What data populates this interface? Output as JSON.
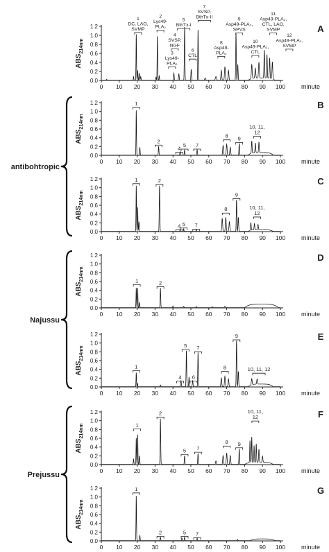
{
  "groups": [
    {
      "label": "antibohtropic",
      "panels": [
        "B",
        "C"
      ]
    },
    {
      "label": "Najussu",
      "panels": [
        "D",
        "E"
      ]
    },
    {
      "label": "Prejussu",
      "panels": [
        "F",
        "G"
      ]
    }
  ],
  "chart_data": [
    {
      "type": "line",
      "panel": "A",
      "ylabel": "ABS",
      "ylabel_sub": "214nm",
      "xlabel": "minute",
      "xlim": [
        0,
        100
      ],
      "ylim": [
        0,
        1.2
      ],
      "x_ticks": [
        "0",
        "10",
        "20",
        "30",
        "40",
        "50",
        "60",
        "70",
        "80",
        "90",
        "100"
      ],
      "y_ticks": [
        "0.0",
        "0.2",
        "0.4",
        "0.6",
        "0.8",
        "1.0",
        "1.2"
      ],
      "peaks": [
        {
          "x": 3,
          "y": 0.02,
          "w": 0.3
        },
        {
          "x": 18,
          "y": 0.08,
          "w": 0.3
        },
        {
          "x": 19.5,
          "y": 1.02,
          "w": 0.3
        },
        {
          "x": 20.3,
          "y": 0.22,
          "w": 0.35
        },
        {
          "x": 21.2,
          "y": 0.15,
          "w": 0.35
        },
        {
          "x": 22,
          "y": 0.08,
          "w": 0.4
        },
        {
          "x": 30.5,
          "y": 0.07,
          "w": 0.4
        },
        {
          "x": 31.3,
          "y": 0.98,
          "w": 0.3
        },
        {
          "x": 32.3,
          "y": 0.1,
          "w": 0.3
        },
        {
          "x": 40.5,
          "y": 0.16,
          "w": 0.4
        },
        {
          "x": 43.3,
          "y": 0.14,
          "w": 0.4
        },
        {
          "x": 46.5,
          "y": 1.18,
          "w": 0.35
        },
        {
          "x": 50.2,
          "y": 0.24,
          "w": 0.4
        },
        {
          "x": 54,
          "y": 1.12,
          "w": 0.3
        },
        {
          "x": 58,
          "y": 0.05,
          "w": 0.6
        },
        {
          "x": 64,
          "y": 0.08,
          "w": 0.7
        },
        {
          "x": 67,
          "y": 0.22,
          "w": 0.5
        },
        {
          "x": 69,
          "y": 0.3,
          "w": 0.5
        },
        {
          "x": 71,
          "y": 0.22,
          "w": 0.5
        },
        {
          "x": 75.2,
          "y": 1.05,
          "w": 0.35
        },
        {
          "x": 76.2,
          "y": 0.35,
          "w": 0.4
        },
        {
          "x": 84,
          "y": 0.32,
          "w": 0.5
        },
        {
          "x": 86,
          "y": 0.22,
          "w": 0.5
        },
        {
          "x": 88,
          "y": 0.35,
          "w": 0.5
        },
        {
          "x": 91,
          "y": 0.62,
          "w": 0.4
        },
        {
          "x": 92.5,
          "y": 0.52,
          "w": 0.4
        },
        {
          "x": 94,
          "y": 0.45,
          "w": 0.4
        },
        {
          "x": 95.5,
          "y": 0.38,
          "w": 0.45
        }
      ],
      "baseline_bump": {
        "from": 82,
        "to": 97,
        "y": 0.05
      },
      "annotations": [
        {
          "lines": [
            "1",
            "DC, LAO,",
            "SVMP"
          ],
          "x": 20.5,
          "y": 1.11
        },
        {
          "lines": [
            "2",
            "Lys49-",
            "PLA₂"
          ],
          "x": 33,
          "y": 1.16
        },
        {
          "lines": [
            "4",
            "SVSP,",
            "NGF"
          ],
          "x": 41,
          "y": 0.75
        },
        {
          "lines": [
            "3",
            "Lys49-",
            "PLA₂"
          ],
          "x": 39.5,
          "y": 0.35
        },
        {
          "lines": [
            "5",
            "BthTx-I"
          ],
          "x": 46,
          "y": 1.2
        },
        {
          "lines": [
            "6",
            "CTL"
          ],
          "x": 51,
          "y": 0.52
        },
        {
          "lines": [
            "7",
            "SVSP,",
            "BthTx-II"
          ],
          "x": 57.5,
          "y": 1.38
        },
        {
          "lines": [
            "8",
            "Asp49-",
            "PLA₂"
          ],
          "x": 67,
          "y": 0.58
        },
        {
          "lines": [
            "9",
            "Asp49-PLA₂,",
            "SPVS"
          ],
          "x": 77,
          "y": 1.1
        },
        {
          "lines": [
            "10",
            "Asp49-PLA₂,",
            "CTL"
          ],
          "x": 86,
          "y": 0.6
        },
        {
          "lines": [
            "11",
            "Asp49-PLA₂,",
            "CTL, LAO,",
            "SVMP"
          ],
          "x": 96,
          "y": 1.1
        },
        {
          "lines": [
            "12",
            "Asp49-PLA₂,",
            "SVMP"
          ],
          "x": 105,
          "y": 0.74
        }
      ]
    },
    {
      "type": "line",
      "panel": "B",
      "ylabel": "ABS",
      "ylabel_sub": "214nm",
      "xlabel": "minute",
      "xlim": [
        0,
        100
      ],
      "ylim": [
        0,
        1.2
      ],
      "x_ticks": [
        "0",
        "10",
        "20",
        "30",
        "40",
        "50",
        "60",
        "70",
        "80",
        "90",
        "100"
      ],
      "y_ticks": [
        "0.0",
        "0.2",
        "0.4",
        "0.6",
        "0.8",
        "1.0",
        "1.2"
      ],
      "peaks": [
        {
          "x": 19.5,
          "y": 1.02,
          "w": 0.3
        },
        {
          "x": 21.5,
          "y": 0.18,
          "w": 0.35
        },
        {
          "x": 32,
          "y": 0.2,
          "w": 0.35
        },
        {
          "x": 44,
          "y": 0.08,
          "w": 0.35
        },
        {
          "x": 46.5,
          "y": 0.12,
          "w": 0.35
        },
        {
          "x": 53.5,
          "y": 0.13,
          "w": 0.35
        },
        {
          "x": 68,
          "y": 0.22,
          "w": 0.5
        },
        {
          "x": 70,
          "y": 0.25,
          "w": 0.5
        },
        {
          "x": 72,
          "y": 0.18,
          "w": 0.5
        },
        {
          "x": 77,
          "y": 0.27,
          "w": 0.35
        },
        {
          "x": 84,
          "y": 0.28,
          "w": 0.4
        },
        {
          "x": 86,
          "y": 0.22,
          "w": 0.4
        },
        {
          "x": 88,
          "y": 0.24,
          "w": 0.4
        }
      ],
      "baseline_bump": {
        "from": 82,
        "to": 96,
        "y": 0.06
      },
      "annotations": [
        {
          "lines": [
            "1"
          ],
          "x": 19.5,
          "y": 1.14
        },
        {
          "lines": [
            "2"
          ],
          "x": 32,
          "y": 0.28
        },
        {
          "lines": [
            "4"
          ],
          "x": 43.5,
          "y": 0.12
        },
        {
          "lines": [
            "5"
          ],
          "x": 46.5,
          "y": 0.19
        },
        {
          "lines": [
            "7"
          ],
          "x": 53.5,
          "y": 0.19
        },
        {
          "lines": [
            "8"
          ],
          "x": 70,
          "y": 0.4
        },
        {
          "lines": [
            "9"
          ],
          "x": 77,
          "y": 0.34
        },
        {
          "lines": [
            "10, 11,",
            "12"
          ],
          "x": 87,
          "y": 0.48
        }
      ]
    },
    {
      "type": "line",
      "panel": "C",
      "ylabel": "ABS",
      "ylabel_sub": "214nm",
      "xlabel": "minute",
      "xlim": [
        0,
        100
      ],
      "ylim": [
        0,
        1.2
      ],
      "x_ticks": [
        "0",
        "10",
        "20",
        "30",
        "40",
        "50",
        "60",
        "70",
        "80",
        "90",
        "100"
      ],
      "y_ticks": [
        "0.0",
        "0.2",
        "0.4",
        "0.6",
        "0.8",
        "1.0",
        "1.2"
      ],
      "peaks": [
        {
          "x": 19.5,
          "y": 1.04,
          "w": 0.3
        },
        {
          "x": 20.3,
          "y": 0.55,
          "w": 0.3
        },
        {
          "x": 21,
          "y": 0.22,
          "w": 0.35
        },
        {
          "x": 32.5,
          "y": 1.04,
          "w": 0.35
        },
        {
          "x": 44,
          "y": 0.05,
          "w": 0.3
        },
        {
          "x": 46,
          "y": 0.06,
          "w": 0.3
        },
        {
          "x": 53,
          "y": 0.05,
          "w": 0.3
        },
        {
          "x": 67.5,
          "y": 0.3,
          "w": 0.5
        },
        {
          "x": 69.5,
          "y": 0.32,
          "w": 0.5
        },
        {
          "x": 71.5,
          "y": 0.22,
          "w": 0.5
        },
        {
          "x": 75.5,
          "y": 0.72,
          "w": 0.35
        },
        {
          "x": 76.5,
          "y": 0.32,
          "w": 0.4
        },
        {
          "x": 83.5,
          "y": 0.18,
          "w": 0.4
        },
        {
          "x": 85.5,
          "y": 0.14,
          "w": 0.4
        },
        {
          "x": 87.5,
          "y": 0.12,
          "w": 0.4
        }
      ],
      "baseline_bump": {
        "from": 82,
        "to": 96,
        "y": 0.04
      },
      "annotations": [
        {
          "lines": [
            "1"
          ],
          "x": 19.5,
          "y": 1.14
        },
        {
          "lines": [
            "2"
          ],
          "x": 32.5,
          "y": 1.12
        },
        {
          "lines": [
            "4"
          ],
          "x": 43.5,
          "y": 0.09
        },
        {
          "lines": [
            "5"
          ],
          "x": 46,
          "y": 0.13
        },
        {
          "lines": [
            "7"
          ],
          "x": 53,
          "y": 0.1
        },
        {
          "lines": [
            "8"
          ],
          "x": 69.5,
          "y": 0.47
        },
        {
          "lines": [
            "9"
          ],
          "x": 75.5,
          "y": 0.8
        },
        {
          "lines": [
            "10, 11,",
            "12"
          ],
          "x": 87,
          "y": 0.38
        }
      ]
    },
    {
      "type": "line",
      "panel": "D",
      "ylabel": "ABS",
      "ylabel_sub": "214nm",
      "xlabel": "minute",
      "xlim": [
        0,
        100
      ],
      "ylim": [
        0,
        1.2
      ],
      "x_ticks": [
        "0",
        "10",
        "20",
        "30",
        "40",
        "50",
        "60",
        "70",
        "80",
        "90",
        "100"
      ],
      "y_ticks": [
        "0.0",
        "0.2",
        "0.4",
        "0.6",
        "0.8",
        "1.0",
        "1.2"
      ],
      "peaks": [
        {
          "x": 19.5,
          "y": 0.45,
          "w": 0.3
        },
        {
          "x": 20.3,
          "y": 0.45,
          "w": 0.3
        },
        {
          "x": 21.3,
          "y": 0.12,
          "w": 0.35
        },
        {
          "x": 33,
          "y": 0.45,
          "w": 0.35
        },
        {
          "x": 40,
          "y": 0.04,
          "w": 0.35
        },
        {
          "x": 46,
          "y": 0.03,
          "w": 0.35
        },
        {
          "x": 53,
          "y": 0.03,
          "w": 0.35
        },
        {
          "x": 62,
          "y": 0.02,
          "w": 0.5
        },
        {
          "x": 69,
          "y": 0.03,
          "w": 0.5
        }
      ],
      "baseline_bump": {
        "from": 80,
        "to": 99,
        "y": 0.08
      },
      "annotations": [
        {
          "lines": [
            "1"
          ],
          "x": 19.8,
          "y": 0.58
        },
        {
          "lines": [
            "2"
          ],
          "x": 33,
          "y": 0.53
        }
      ]
    },
    {
      "type": "line",
      "panel": "E",
      "ylabel": "ABS",
      "ylabel_sub": "214nm",
      "xlabel": "minute",
      "xlim": [
        0,
        100
      ],
      "ylim": [
        0,
        1.2
      ],
      "x_ticks": [
        "0",
        "10",
        "20",
        "30",
        "40",
        "50",
        "60",
        "70",
        "80",
        "90",
        "100"
      ],
      "y_ticks": [
        "0.0",
        "0.2",
        "0.4",
        "0.6",
        "0.8",
        "1.0",
        "1.2"
      ],
      "peaks": [
        {
          "x": 19.5,
          "y": 0.32,
          "w": 0.3
        },
        {
          "x": 20.2,
          "y": 0.08,
          "w": 0.3
        },
        {
          "x": 33,
          "y": 0.04,
          "w": 0.35
        },
        {
          "x": 44.5,
          "y": 0.14,
          "w": 0.4
        },
        {
          "x": 47.5,
          "y": 0.82,
          "w": 0.35
        },
        {
          "x": 49,
          "y": 0.22,
          "w": 0.4
        },
        {
          "x": 51,
          "y": 0.14,
          "w": 0.4
        },
        {
          "x": 54,
          "y": 0.78,
          "w": 0.35
        },
        {
          "x": 67,
          "y": 0.2,
          "w": 0.5
        },
        {
          "x": 69,
          "y": 0.24,
          "w": 0.5
        },
        {
          "x": 71,
          "y": 0.18,
          "w": 0.5
        },
        {
          "x": 75.5,
          "y": 1.05,
          "w": 0.35
        },
        {
          "x": 76.5,
          "y": 0.35,
          "w": 0.4
        },
        {
          "x": 84,
          "y": 0.14,
          "w": 0.5
        },
        {
          "x": 87,
          "y": 0.12,
          "w": 0.5
        }
      ],
      "baseline_bump": {
        "from": 82,
        "to": 96,
        "y": 0.06
      },
      "annotations": [
        {
          "lines": [
            "1"
          ],
          "x": 19.5,
          "y": 0.42
        },
        {
          "lines": [
            "4"
          ],
          "x": 44,
          "y": 0.18
        },
        {
          "lines": [
            "5"
          ],
          "x": 47,
          "y": 0.9
        },
        {
          "lines": [
            "6"
          ],
          "x": 51.5,
          "y": 0.18
        },
        {
          "lines": [
            "7"
          ],
          "x": 54,
          "y": 0.85
        },
        {
          "lines": [
            "8"
          ],
          "x": 69,
          "y": 0.4
        },
        {
          "lines": [
            "9"
          ],
          "x": 75.5,
          "y": 1.12
        },
        {
          "lines": [
            "10, 11, 12"
          ],
          "x": 88,
          "y": 0.36
        }
      ]
    },
    {
      "type": "line",
      "panel": "F",
      "ylabel": "ABS",
      "ylabel_sub": "214nm",
      "xlabel": "minute",
      "xlim": [
        0,
        100
      ],
      "ylim": [
        0,
        1.2
      ],
      "x_ticks": [
        "0",
        "10",
        "20",
        "30",
        "40",
        "50",
        "60",
        "70",
        "80",
        "90",
        "100"
      ],
      "y_ticks": [
        "0.0",
        "0.2",
        "0.4",
        "0.6",
        "0.8",
        "1.0",
        "1.2"
      ],
      "peaks": [
        {
          "x": 18,
          "y": 0.12,
          "w": 0.35
        },
        {
          "x": 19.5,
          "y": 0.6,
          "w": 0.3
        },
        {
          "x": 20.3,
          "y": 0.68,
          "w": 0.3
        },
        {
          "x": 21.3,
          "y": 0.2,
          "w": 0.35
        },
        {
          "x": 33,
          "y": 1.04,
          "w": 0.35
        },
        {
          "x": 46.5,
          "y": 0.2,
          "w": 0.35
        },
        {
          "x": 54,
          "y": 0.25,
          "w": 0.35
        },
        {
          "x": 64,
          "y": 0.08,
          "w": 0.5
        },
        {
          "x": 68,
          "y": 0.2,
          "w": 0.5
        },
        {
          "x": 70,
          "y": 0.26,
          "w": 0.5
        },
        {
          "x": 72,
          "y": 0.2,
          "w": 0.5
        },
        {
          "x": 77,
          "y": 0.36,
          "w": 0.35
        },
        {
          "x": 83,
          "y": 0.5,
          "w": 0.35
        },
        {
          "x": 84,
          "y": 0.58,
          "w": 0.35
        },
        {
          "x": 85.3,
          "y": 0.38,
          "w": 0.35
        },
        {
          "x": 86.5,
          "y": 0.42,
          "w": 0.35
        },
        {
          "x": 88,
          "y": 0.3,
          "w": 0.4
        },
        {
          "x": 90,
          "y": 0.14,
          "w": 0.45
        }
      ],
      "baseline_bump": {
        "from": 80,
        "to": 96,
        "y": 0.05
      },
      "annotations": [
        {
          "lines": [
            "1"
          ],
          "x": 20,
          "y": 0.86
        },
        {
          "lines": [
            "2"
          ],
          "x": 33,
          "y": 1.13
        },
        {
          "lines": [
            "5"
          ],
          "x": 46.5,
          "y": 0.28
        },
        {
          "lines": [
            "7"
          ],
          "x": 54,
          "y": 0.33
        },
        {
          "lines": [
            "8"
          ],
          "x": 70,
          "y": 0.47
        },
        {
          "lines": [
            "9"
          ],
          "x": 77,
          "y": 0.43
        },
        {
          "lines": [
            "10, 11,",
            "12"
          ],
          "x": 86,
          "y": 1.04
        }
      ]
    },
    {
      "type": "line",
      "panel": "G",
      "ylabel": "ABS",
      "ylabel_sub": "214nm",
      "xlabel": "minute",
      "xlim": [
        0,
        100
      ],
      "ylim": [
        0,
        1.2
      ],
      "x_ticks": [
        "0",
        "10",
        "20",
        "30",
        "40",
        "50",
        "60",
        "70",
        "80",
        "90",
        "100"
      ],
      "y_ticks": [
        "0.0",
        "0.2",
        "0.4",
        "0.6",
        "0.8",
        "1.0",
        "1.2"
      ],
      "peaks": [
        {
          "x": 19.5,
          "y": 1.02,
          "w": 0.3
        },
        {
          "x": 21.5,
          "y": 0.12,
          "w": 0.35
        },
        {
          "x": 33,
          "y": 0.08,
          "w": 0.35
        },
        {
          "x": 45,
          "y": 0.06,
          "w": 0.35
        },
        {
          "x": 46.5,
          "y": 0.08,
          "w": 0.35
        },
        {
          "x": 53.5,
          "y": 0.06,
          "w": 0.35
        },
        {
          "x": 76,
          "y": 0.03,
          "w": 0.4
        }
      ],
      "baseline_bump": {
        "from": 83,
        "to": 97,
        "y": 0.04
      },
      "annotations": [
        {
          "lines": [
            "1"
          ],
          "x": 19.5,
          "y": 1.14
        },
        {
          "lines": [
            "2"
          ],
          "x": 33,
          "y": 0.15
        },
        {
          "lines": [
            "5"
          ],
          "x": 46.5,
          "y": 0.15
        },
        {
          "lines": [
            "7"
          ],
          "x": 53.5,
          "y": 0.12
        }
      ]
    }
  ]
}
